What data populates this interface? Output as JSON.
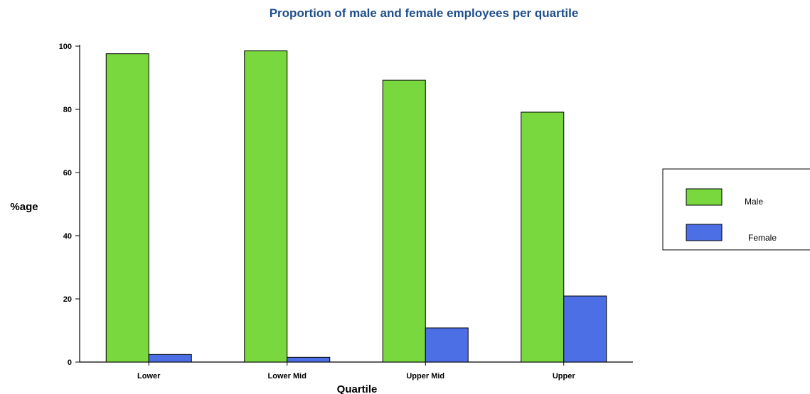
{
  "chart_data": {
    "type": "bar",
    "title": "Proportion of male and female employees per quartile",
    "xlabel": "Quartile",
    "ylabel": "%age",
    "ylim": [
      0,
      100
    ],
    "yticks": [
      0,
      20,
      40,
      60,
      80,
      100
    ],
    "categories": [
      "Lower",
      "Lower Mid",
      "Upper Mid",
      "Upper"
    ],
    "series": [
      {
        "name": "Male",
        "color": "#7ad83f",
        "values": [
          97.6,
          98.5,
          89.2,
          79.1
        ]
      },
      {
        "name": "Female",
        "color": "#4d6fe6",
        "values": [
          2.4,
          1.5,
          10.8,
          20.9
        ]
      }
    ],
    "grid": false,
    "legend_position": "right"
  }
}
